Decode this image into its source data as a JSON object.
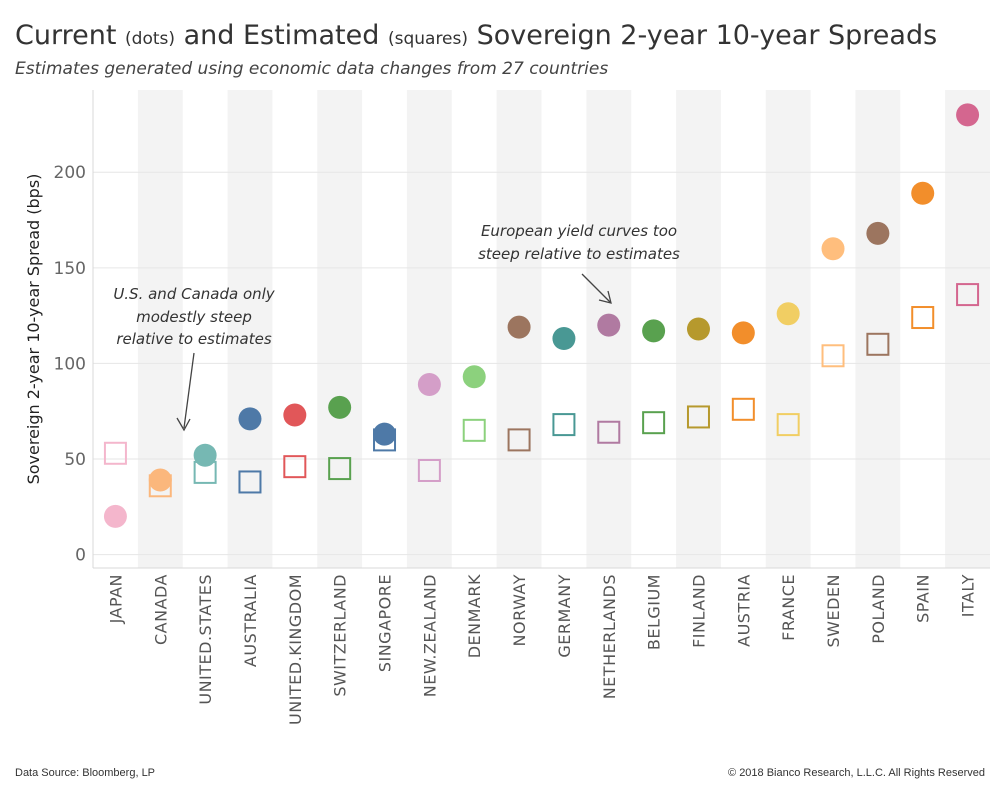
{
  "title": {
    "part1": "Current",
    "part2": "(dots)",
    "part3": "and Estimated",
    "part4": "(squares)",
    "part5": "Sovereign 2-year 10-year Spreads"
  },
  "subtitle": "Estimates generated using economic data changes from 27 countries",
  "footer": {
    "source": "Data Source: Bloomberg, LP",
    "copyright": "© 2018 Bianco Research, L.L.C. All Rights Reserved"
  },
  "chart_data": {
    "type": "scatter",
    "ylabel": "Sovereign 2-year 10-year Spread (bps)",
    "ylim": [
      -7,
      243
    ],
    "yticks": [
      0,
      50,
      100,
      150,
      200
    ],
    "grid": true,
    "categories": [
      "JAPAN",
      "CANADA",
      "UNITED.STATES",
      "AUSTRALIA",
      "UNITED.KINGDOM",
      "SWITZERLAND",
      "SINGAPORE",
      "NEW.ZEALAND",
      "DENMARK",
      "NORWAY",
      "GERMANY",
      "NETHERLANDS",
      "BELGIUM",
      "FINLAND",
      "AUSTRIA",
      "FRANCE",
      "SWEDEN",
      "POLAND",
      "SPAIN",
      "ITALY"
    ],
    "colors": [
      "#f4b6cc",
      "#fbb77c",
      "#76b8b3",
      "#4e79a7",
      "#e15759",
      "#59a14f",
      "#4e79a7",
      "#d49ec8",
      "#8cd17d",
      "#9c755f",
      "#499894",
      "#b07aa1",
      "#59a14f",
      "#b6992d",
      "#f28e2b",
      "#f1ce63",
      "#ffbe7d",
      "#9c755f",
      "#f28e2b",
      "#d4668f"
    ],
    "series": [
      {
        "name": "Current",
        "marker": "dot",
        "values": [
          20,
          39,
          52,
          71,
          73,
          77,
          63,
          89,
          93,
          119,
          113,
          120,
          117,
          118,
          116,
          126,
          160,
          168,
          189,
          230
        ]
      },
      {
        "name": "Estimated",
        "marker": "square",
        "values": [
          53,
          36,
          43,
          38,
          46,
          45,
          60,
          44,
          65,
          60,
          68,
          64,
          69,
          72,
          76,
          68,
          104,
          110,
          124,
          136
        ]
      }
    ],
    "annotations": [
      {
        "lines": [
          "U.S. and Canada only",
          "modestly steep",
          "relative to estimates"
        ]
      },
      {
        "lines": [
          "European yield curves too",
          "steep relative to estimates"
        ]
      }
    ]
  }
}
